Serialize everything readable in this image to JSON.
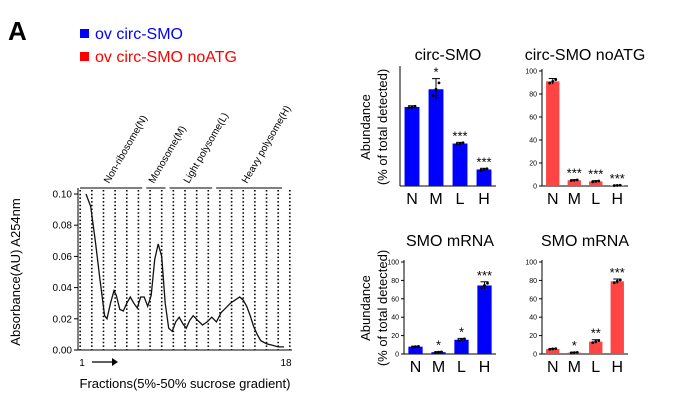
{
  "figure": {
    "panel_letter": "A",
    "legend": [
      {
        "label": "ov circ-SMO",
        "color": "#0000ff"
      },
      {
        "label": "ov circ-SMO noATG",
        "color": "#ff0000"
      }
    ]
  },
  "chart_data": [
    {
      "type": "line",
      "title": "",
      "ylabel": "Absorbance(AU) A254nm",
      "xlabel": "Fractions(5%-50% sucrose gradient)",
      "ylim": [
        0.0,
        0.1
      ],
      "yticks": [
        "0.00",
        "0.02",
        "0.04",
        "0.06",
        "0.08",
        "0.10"
      ],
      "x_start_label": "1",
      "x_end_label": "18",
      "fraction_count": 18,
      "regions": [
        {
          "label": "Non-ribosome(N)",
          "from": 1,
          "to": 6
        },
        {
          "label": "Monosome(M)",
          "from": 6,
          "to": 8
        },
        {
          "label": "Light polysome(L)",
          "from": 8,
          "to": 12
        },
        {
          "label": "Heavy polysome(H)",
          "from": 12,
          "to": 18
        }
      ],
      "series": [
        {
          "x": [
            1.0,
            1.4,
            1.8,
            2.2,
            2.6,
            2.8,
            3.1,
            3.4,
            3.6,
            3.9,
            4.2,
            4.5,
            4.8,
            5.1,
            5.4,
            5.7,
            6.0,
            6.3,
            6.6,
            6.9,
            7.2,
            7.5,
            7.8,
            8.1,
            8.4,
            8.7,
            9.0,
            9.3,
            9.6,
            9.9,
            10.2,
            10.6,
            11.0,
            11.4,
            11.8,
            12.2,
            12.6,
            13.0,
            13.4,
            13.8,
            14.2,
            14.5,
            14.8,
            15.1,
            15.4,
            15.7,
            16.0,
            16.5,
            17.0,
            17.5,
            18.0
          ],
          "y": [
            0.1,
            0.092,
            0.07,
            0.045,
            0.022,
            0.02,
            0.03,
            0.038,
            0.035,
            0.026,
            0.025,
            0.03,
            0.034,
            0.03,
            0.027,
            0.034,
            0.034,
            0.028,
            0.035,
            0.058,
            0.068,
            0.06,
            0.03,
            0.014,
            0.012,
            0.018,
            0.021,
            0.017,
            0.014,
            0.019,
            0.022,
            0.019,
            0.016,
            0.018,
            0.021,
            0.018,
            0.024,
            0.027,
            0.03,
            0.032,
            0.034,
            0.032,
            0.028,
            0.022,
            0.015,
            0.01,
            0.006,
            0.004,
            0.003,
            0.002,
            0.002
          ]
        }
      ]
    },
    {
      "type": "bar",
      "title": "circ-SMO",
      "ylabel": "Abundance\n(% of total detected)",
      "ylim": [
        0,
        50
      ],
      "categories": [
        "N",
        "M",
        "L",
        "H"
      ],
      "values": [
        33.5,
        41,
        18,
        7
      ],
      "errors": [
        0.5,
        4.5,
        0.5,
        0.5
      ],
      "significance": [
        "",
        "*",
        "***",
        "***"
      ],
      "color": "#0000ff",
      "yticks_shown": false
    },
    {
      "type": "bar",
      "title": "circ-SMO noATG",
      "ylabel": "",
      "ylim": [
        0,
        100
      ],
      "yticks": [
        "0",
        "20",
        "40",
        "60",
        "80",
        "100"
      ],
      "categories": [
        "N",
        "M",
        "L",
        "H"
      ],
      "values": [
        91,
        5,
        4,
        0.5
      ],
      "errors": [
        2.5,
        0.5,
        0.6,
        0.2
      ],
      "significance": [
        "",
        "***",
        "***",
        "***"
      ],
      "color": "#ff4444",
      "yticks_shown": true
    },
    {
      "type": "bar",
      "title": "SMO mRNA",
      "ylabel": "Abundance\n(% of total detected)",
      "ylim": [
        0,
        100
      ],
      "yticks": [
        "0",
        "20",
        "40",
        "60",
        "80",
        "100"
      ],
      "categories": [
        "N",
        "M",
        "L",
        "H"
      ],
      "values": [
        8,
        2,
        15.5,
        74.5
      ],
      "errors": [
        0.5,
        0.5,
        1.5,
        4
      ],
      "significance": [
        "",
        "*",
        "*",
        "***"
      ],
      "color": "#0000ff",
      "yticks_shown": true
    },
    {
      "type": "bar",
      "title": "SMO mRNA",
      "ylabel": "",
      "ylim": [
        0,
        100
      ],
      "yticks": [
        "0",
        "20",
        "40",
        "60",
        "80",
        "100"
      ],
      "categories": [
        "N",
        "M",
        "L",
        "H"
      ],
      "values": [
        5.5,
        1.5,
        13.5,
        79
      ],
      "errors": [
        0.5,
        0.5,
        2,
        2.5
      ],
      "significance": [
        "",
        "*",
        "**",
        "***"
      ],
      "color": "#ff4444",
      "yticks_shown": true
    }
  ]
}
